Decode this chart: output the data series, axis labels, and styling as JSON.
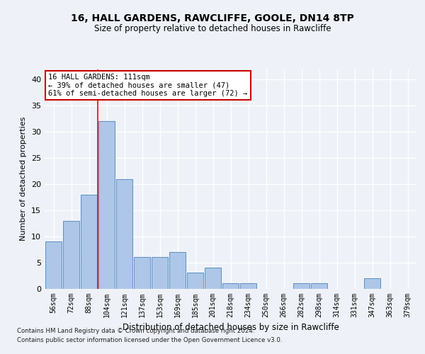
{
  "title1": "16, HALL GARDENS, RAWCLIFFE, GOOLE, DN14 8TP",
  "title2": "Size of property relative to detached houses in Rawcliffe",
  "xlabel": "Distribution of detached houses by size in Rawcliffe",
  "ylabel": "Number of detached properties",
  "bar_labels": [
    "56sqm",
    "72sqm",
    "88sqm",
    "104sqm",
    "121sqm",
    "137sqm",
    "153sqm",
    "169sqm",
    "185sqm",
    "201sqm",
    "218sqm",
    "234sqm",
    "250sqm",
    "266sqm",
    "282sqm",
    "298sqm",
    "314sqm",
    "331sqm",
    "347sqm",
    "363sqm",
    "379sqm"
  ],
  "bar_values": [
    9,
    13,
    18,
    32,
    21,
    6,
    6,
    7,
    3,
    4,
    1,
    1,
    0,
    0,
    1,
    1,
    0,
    0,
    2,
    0,
    0
  ],
  "bar_color": "#aec6e8",
  "bar_edge_color": "#5a8fc2",
  "red_line_x": 2.5,
  "annotation_text": "16 HALL GARDENS: 111sqm\n← 39% of detached houses are smaller (47)\n61% of semi-detached houses are larger (72) →",
  "annotation_box_color": "#ffffff",
  "annotation_box_edge_color": "#cc0000",
  "ylim": [
    0,
    42
  ],
  "yticks": [
    0,
    5,
    10,
    15,
    20,
    25,
    30,
    35,
    40
  ],
  "footer1": "Contains HM Land Registry data © Crown copyright and database right 2024.",
  "footer2": "Contains public sector information licensed under the Open Government Licence v3.0.",
  "bg_color": "#eef2f8",
  "plot_bg_color": "#eef2f8",
  "grid_color": "#ffffff"
}
